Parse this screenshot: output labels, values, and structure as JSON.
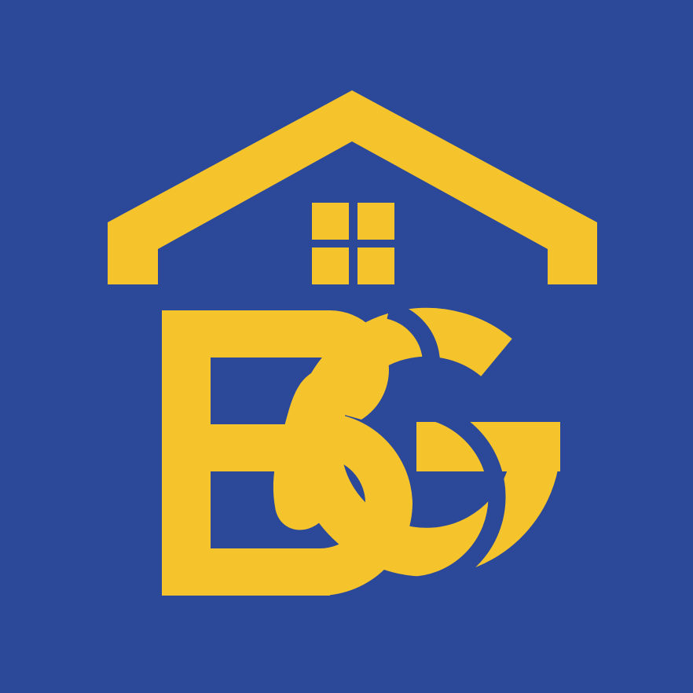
{
  "logo": {
    "letters": "EBG",
    "colors": {
      "background": "#2b4899",
      "mark": "#f5c32c"
    },
    "icon": "house-roof-icon"
  }
}
